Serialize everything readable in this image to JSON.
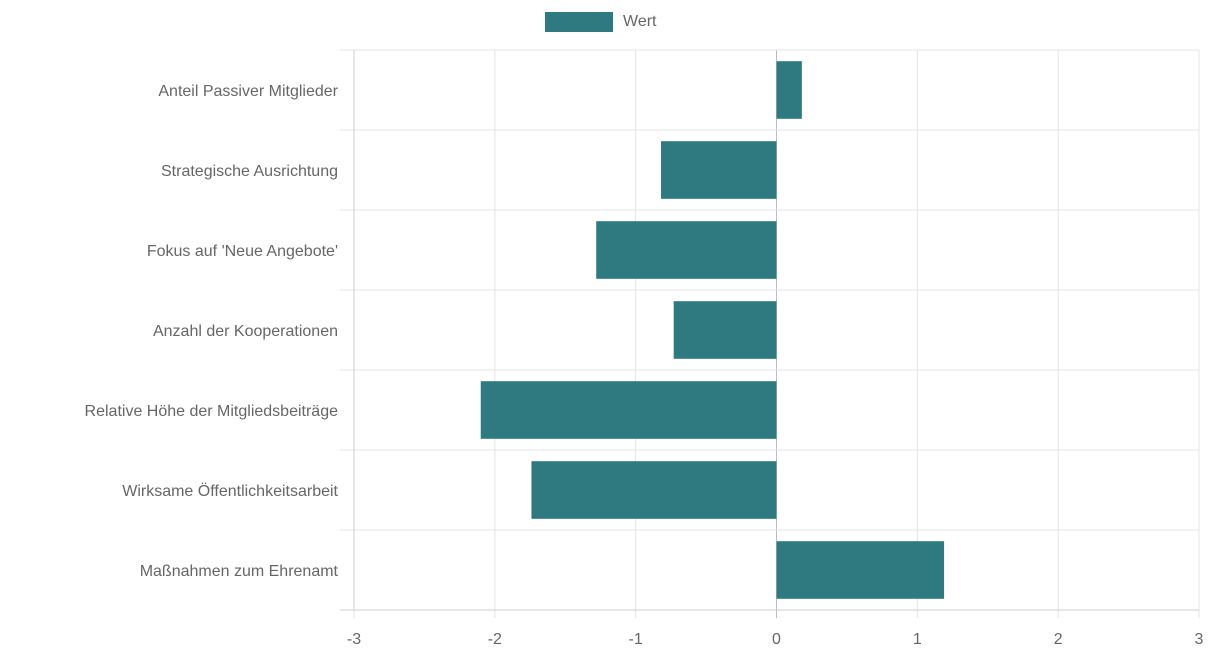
{
  "chart_data": {
    "type": "bar",
    "orientation": "horizontal",
    "categories": [
      "Anteil Passiver Mitglieder",
      "Strategische Ausrichtung",
      "Fokus auf 'Neue Angebote'",
      "Anzahl der Kooperationen",
      "Relative Höhe der Mitgliedsbeiträge",
      "Wirksame Öffentlichkeitsarbeit",
      "Maßnahmen zum Ehrenamt"
    ],
    "series": [
      {
        "name": "Wert",
        "values": [
          0.18,
          -0.82,
          -1.28,
          -0.73,
          -2.1,
          -1.74,
          1.19
        ]
      }
    ],
    "xlim": [
      -3,
      3
    ],
    "x_ticks": [
      -3,
      -2,
      -1,
      0,
      1,
      2,
      3
    ],
    "xlabel": "",
    "ylabel": "",
    "grid": true,
    "legend_position": "top",
    "bar_color": "#2e7a80"
  }
}
